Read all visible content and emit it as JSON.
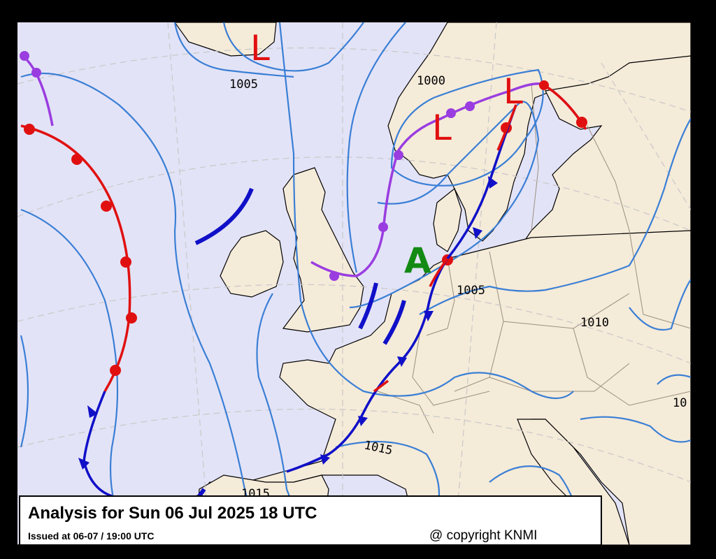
{
  "pressure_centers": [
    {
      "label": "L"
    },
    {
      "label": "L"
    },
    {
      "label": "L"
    },
    {
      "label": "A"
    }
  ],
  "isobar_labels": [
    1005,
    1000,
    1005,
    1010,
    1015,
    1015,
    10
  ],
  "caption": {
    "title": "Analysis for Sun 06 Jul 2025 18 UTC",
    "issued": "Issued at 06-07 / 19:00 UTC",
    "copyright": "@ copyright KNMI"
  }
}
